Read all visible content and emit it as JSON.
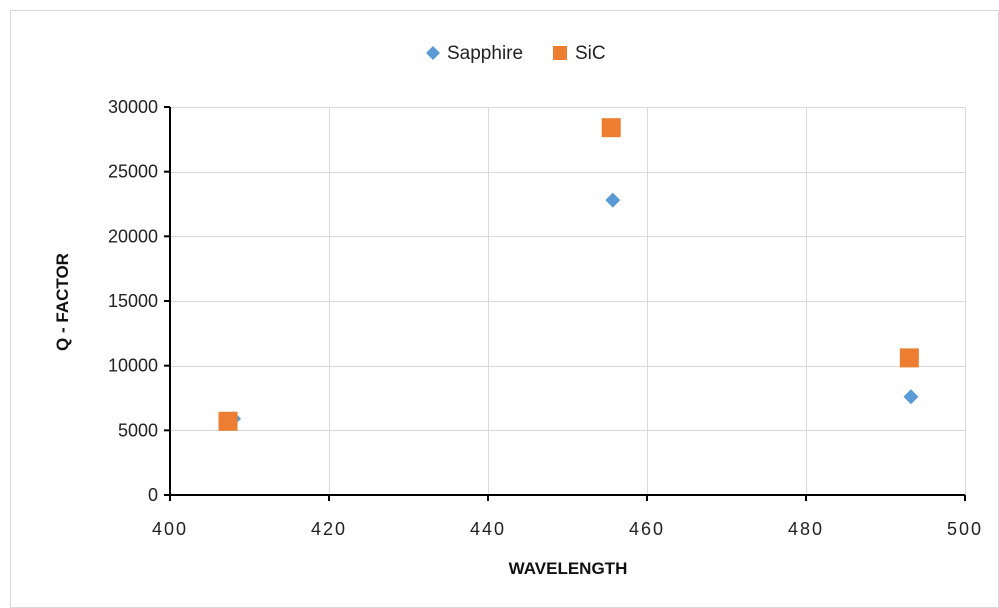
{
  "chart_data": {
    "type": "scatter",
    "title": "",
    "xlabel": "WAVELENGTH",
    "ylabel": "Q - FACTOR",
    "xlim": [
      400,
      500
    ],
    "ylim": [
      0,
      30000
    ],
    "x_ticks": [
      400,
      420,
      440,
      460,
      480,
      500
    ],
    "y_ticks": [
      0,
      5000,
      10000,
      15000,
      20000,
      25000,
      30000
    ],
    "x_tick_labels": [
      "400",
      "420",
      "440",
      "460",
      "480",
      "500"
    ],
    "y_tick_labels": [
      "0",
      "5000",
      "10000",
      "15000",
      "20000",
      "25000",
      "30000"
    ],
    "grid": true,
    "legend_position": "top-center",
    "series": [
      {
        "name": "Sapphire",
        "marker": "diamond",
        "color": "#5b9bd5",
        "x": [
          408,
          455.7,
          493.2
        ],
        "y": [
          5900,
          22800,
          7600
        ]
      },
      {
        "name": "SiC",
        "marker": "square",
        "color": "#ed7d31",
        "x": [
          407.3,
          455.5,
          493
        ],
        "y": [
          5700,
          28400,
          10600
        ]
      }
    ]
  },
  "colors": {
    "grid": "#d9d9d9",
    "axis": "#000000",
    "frame": "#d9d9d9"
  }
}
